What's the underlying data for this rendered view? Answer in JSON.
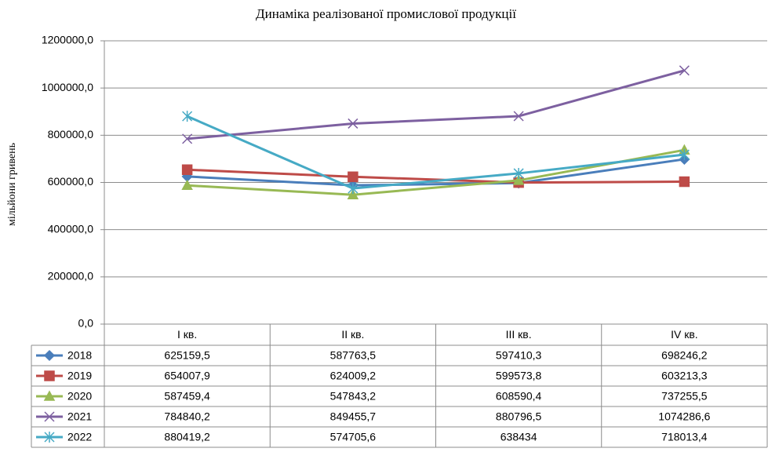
{
  "chart_data": {
    "type": "line",
    "title": "Динаміка реалізованої промислової продукції",
    "y_label": "мільйони гривень",
    "categories": [
      "I кв.",
      "II кв.",
      "III кв.",
      "IV кв."
    ],
    "ylim": [
      0,
      1200000
    ],
    "yticks": [
      {
        "value": 0,
        "label": "0,0"
      },
      {
        "value": 200000,
        "label": "200000,0"
      },
      {
        "value": 400000,
        "label": "400000,0"
      },
      {
        "value": 600000,
        "label": "600000,0"
      },
      {
        "value": 800000,
        "label": "800000,0"
      },
      {
        "value": 1000000,
        "label": "1000000,0"
      },
      {
        "value": 1200000,
        "label": "1200000,0"
      }
    ],
    "grid": true,
    "series": [
      {
        "name": "2018",
        "color": "#4a7ebb",
        "marker": "diamond",
        "values": [
          625159.5,
          587763.5,
          597410.3,
          698246.2
        ],
        "value_labels": [
          "625159,5",
          "587763,5",
          "597410,3",
          "698246,2"
        ]
      },
      {
        "name": "2019",
        "color": "#be4b48",
        "marker": "square",
        "values": [
          654007.9,
          624009.2,
          599573.8,
          603213.3
        ],
        "value_labels": [
          "654007,9",
          "624009,2",
          "599573,8",
          "603213,3"
        ]
      },
      {
        "name": "2020",
        "color": "#98b954",
        "marker": "triangle",
        "values": [
          587459.4,
          547843.2,
          608590.4,
          737255.5
        ],
        "value_labels": [
          "587459,4",
          "547843,2",
          "608590,4",
          "737255,5"
        ]
      },
      {
        "name": "2021",
        "color": "#7d60a0",
        "marker": "x",
        "values": [
          784840.2,
          849455.7,
          880796.5,
          1074286.6
        ],
        "value_labels": [
          "784840,2",
          "849455,7",
          "880796,5",
          "1074286,6"
        ]
      },
      {
        "name": "2022",
        "color": "#46aac5",
        "marker": "star",
        "values": [
          880419.2,
          574705.6,
          638434,
          718013.4
        ],
        "value_labels": [
          "880419,2",
          "574705,6",
          "638434",
          "718013,4"
        ]
      }
    ]
  }
}
